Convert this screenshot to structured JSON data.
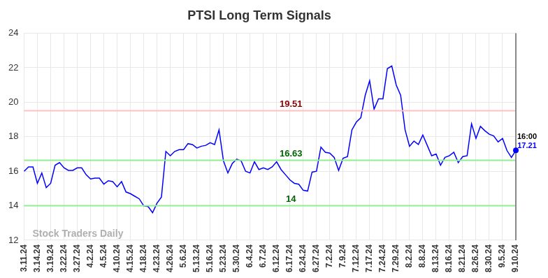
{
  "chart_data": {
    "type": "line",
    "title": "PTSI Long Term Signals",
    "categories": [
      "3.11.24",
      null,
      null,
      "3.14.24",
      null,
      null,
      "3.19.24",
      null,
      null,
      "3.22.24",
      null,
      null,
      "3.27.24",
      null,
      null,
      "4.2.24",
      null,
      null,
      "4.5.24",
      null,
      null,
      "4.10.24",
      null,
      null,
      "4.15.24",
      null,
      null,
      "4.18.24",
      null,
      null,
      "4.23.24",
      null,
      null,
      "4.26.24",
      null,
      null,
      "5.6.24",
      null,
      null,
      "5.13.24",
      null,
      null,
      "5.16.24",
      null,
      null,
      "5.23.24",
      null,
      null,
      "5.30.24",
      null,
      null,
      "6.4.24",
      null,
      null,
      "6.7.24",
      null,
      null,
      "6.12.24",
      null,
      null,
      "6.17.24",
      null,
      null,
      "6.24.24",
      null,
      null,
      "6.27.24",
      null,
      null,
      "7.2.24",
      null,
      null,
      "7.9.24",
      null,
      null,
      "7.12.24",
      null,
      null,
      "7.17.24",
      null,
      null,
      "7.24.24",
      null,
      null,
      "7.29.24",
      null,
      null,
      "8.2.24",
      null,
      null,
      "8.8.24",
      null,
      null,
      "8.13.24",
      null,
      null,
      "8.16.24",
      null,
      null,
      "8.21.24",
      null,
      null,
      "8.26.24",
      null,
      null,
      "8.30.24",
      null,
      null,
      "9.5.24",
      null,
      null,
      "9.10.24"
    ],
    "values": [
      16.0,
      16.25,
      16.25,
      15.3,
      15.9,
      15.05,
      15.3,
      16.35,
      16.5,
      16.2,
      16.05,
      16.05,
      16.2,
      16.2,
      15.8,
      15.55,
      15.6,
      15.6,
      15.25,
      15.45,
      15.4,
      15.1,
      15.4,
      14.8,
      14.7,
      14.55,
      14.4,
      14.0,
      13.95,
      13.6,
      14.15,
      14.5,
      17.15,
      16.9,
      17.15,
      17.25,
      17.25,
      17.6,
      17.55,
      17.35,
      17.45,
      17.5,
      17.65,
      17.55,
      18.4,
      16.6,
      15.9,
      16.45,
      16.7,
      16.6,
      16.0,
      15.9,
      16.55,
      16.1,
      16.2,
      16.1,
      16.25,
      16.55,
      16.1,
      15.8,
      15.5,
      15.3,
      15.25,
      14.9,
      14.85,
      15.95,
      16.0,
      17.4,
      17.1,
      17.05,
      16.8,
      16.05,
      16.75,
      16.85,
      18.4,
      18.85,
      19.1,
      20.4,
      21.25,
      19.6,
      20.2,
      20.2,
      21.95,
      22.1,
      21.0,
      20.4,
      18.4,
      17.45,
      17.75,
      17.55,
      18.1,
      17.5,
      16.9,
      17.0,
      16.35,
      16.8,
      16.9,
      17.1,
      16.5,
      16.85,
      16.9,
      18.75,
      17.9,
      18.6,
      18.35,
      18.15,
      18.05,
      17.7,
      17.9,
      17.2,
      16.8,
      17.21
    ],
    "color": "#0000ff",
    "ylim": [
      12,
      24
    ],
    "yticks": [
      12,
      14,
      16,
      18,
      20,
      22,
      24
    ],
    "grid": true,
    "horizontal_lines": [
      {
        "value": 19.51,
        "label": "19.51",
        "color": "#ffc0c0"
      },
      {
        "value": 16.63,
        "label": "16.63",
        "color": "#90ee90"
      },
      {
        "value": 14,
        "label": "14",
        "color": "#90ee90"
      }
    ],
    "last_time_label": "16:00",
    "watermark": "Stock Traders Daily"
  }
}
